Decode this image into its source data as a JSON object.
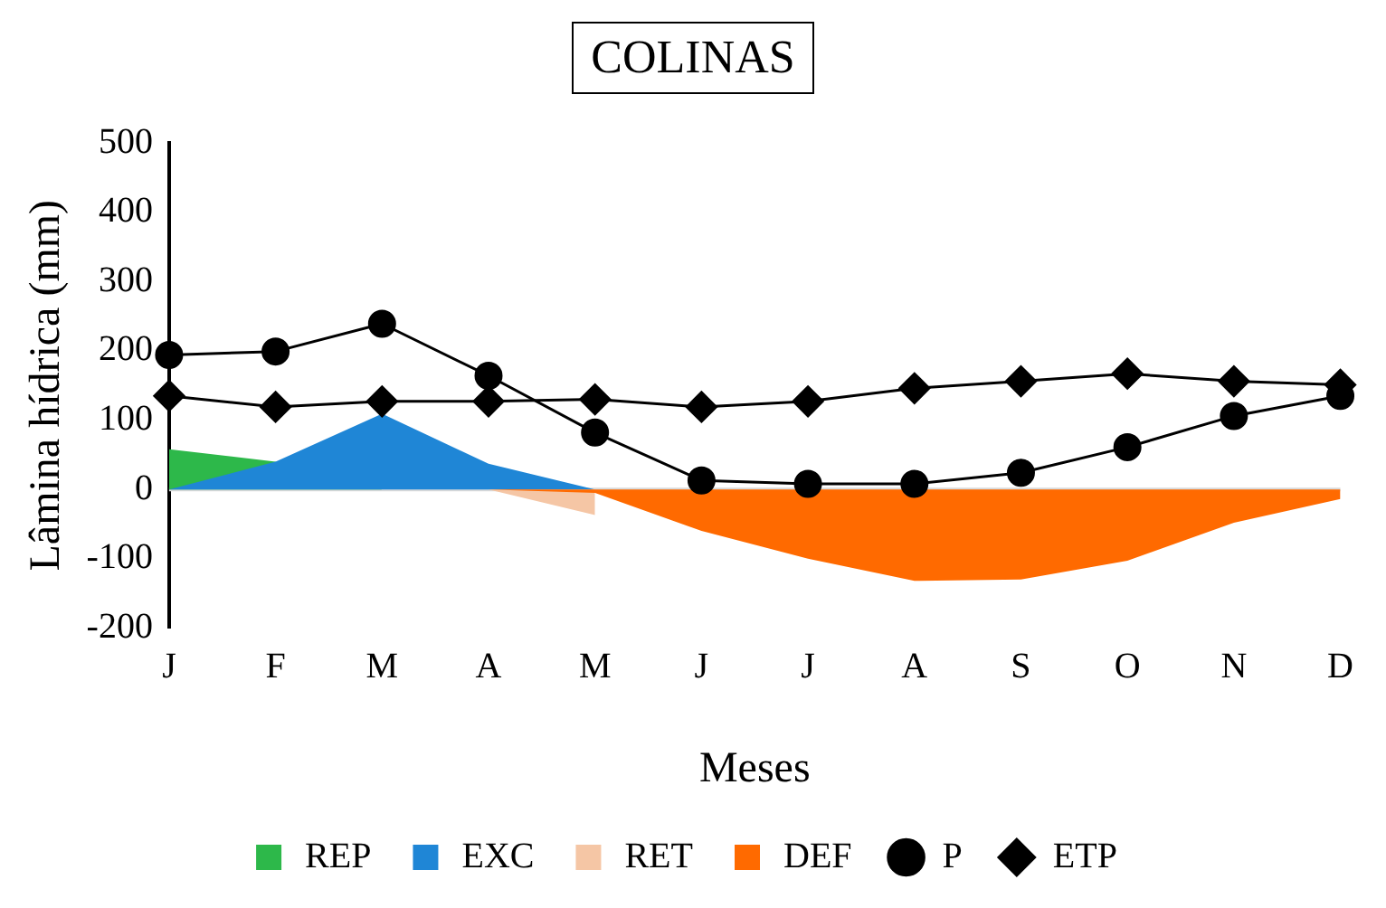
{
  "chart_data": {
    "type": "area",
    "title": "COLINAS",
    "xlabel": "Meses",
    "ylabel": "Lâmina hídrica (mm)",
    "categories": [
      "J",
      "F",
      "M",
      "A",
      "M",
      "J",
      "J",
      "A",
      "S",
      "O",
      "N",
      "D"
    ],
    "series": [
      {
        "name": "REP",
        "color": "#2db84a",
        "values": [
          58,
          40,
          0,
          0,
          0,
          0,
          0,
          0,
          0,
          0,
          0,
          0
        ]
      },
      {
        "name": "EXC",
        "color": "#1f86d6",
        "values": [
          0,
          40,
          109,
          37,
          0,
          0,
          0,
          0,
          0,
          0,
          0,
          0
        ]
      },
      {
        "name": "RET",
        "color": "#f5c6a5",
        "values": [
          0,
          0,
          0,
          0,
          -37,
          null,
          null,
          null,
          null,
          null,
          null,
          null
        ]
      },
      {
        "name": "DEF",
        "color": "#ff6a00",
        "values": [
          0,
          0,
          0,
          0,
          -5,
          -60,
          -100,
          -132,
          -130,
          -103,
          -48,
          -14
        ]
      },
      {
        "name": "P",
        "type": "line",
        "color": "#000000",
        "marker": "circle",
        "values": [
          194,
          199,
          239,
          164,
          82,
          13,
          8,
          8,
          24,
          61,
          106,
          135
        ]
      },
      {
        "name": "ETP",
        "type": "line",
        "color": "#000000",
        "marker": "diamond",
        "values": [
          135,
          119,
          127,
          127,
          130,
          119,
          127,
          146,
          156,
          167,
          156,
          151
        ]
      }
    ],
    "ylim": [
      -200,
      500
    ],
    "yticks": [
      -200,
      -100,
      0,
      100,
      200,
      300,
      400,
      500
    ],
    "ref_lines": [
      {
        "axis": "y",
        "value": 0,
        "color": "#d9d9d9"
      }
    ],
    "grid": false,
    "legend": "bottom"
  }
}
